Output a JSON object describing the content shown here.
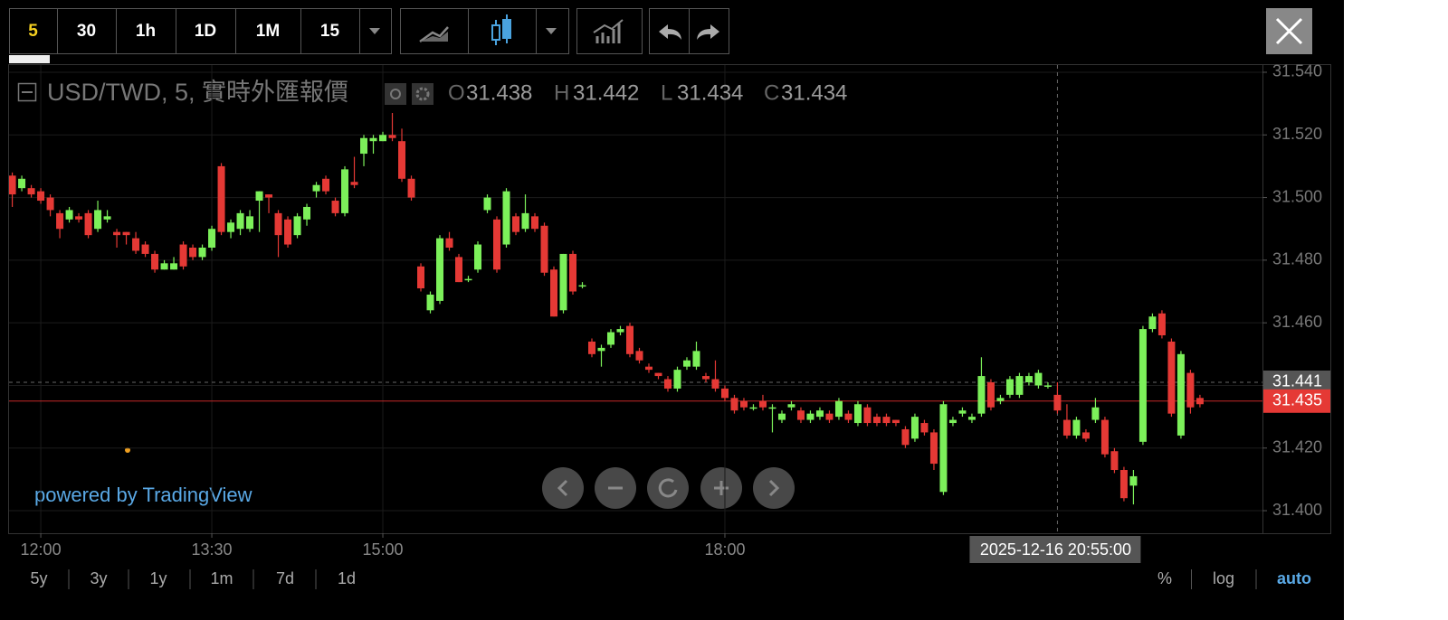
{
  "toolbar": {
    "intervals": [
      "5",
      "30",
      "1h",
      "1D",
      "1M",
      "15"
    ]
  },
  "chart_data": {
    "type": "candlestick",
    "title": "USD/TWD, 5, 實時外匯報價",
    "ohlc": [
      {
        "key": "O",
        "value": "31.438"
      },
      {
        "key": "H",
        "value": "31.442"
      },
      {
        "key": "L",
        "value": "31.434"
      },
      {
        "key": "C",
        "value": "31.434"
      }
    ],
    "up_color": "#7cf05a",
    "down_color": "#e53935",
    "x": [
      705,
      710,
      715,
      720,
      725,
      730,
      735,
      740,
      745,
      750,
      755,
      760,
      765,
      770,
      775,
      780,
      785,
      790,
      795,
      800,
      805,
      810,
      815,
      820,
      825,
      830,
      835,
      840,
      845,
      850,
      855,
      860,
      865,
      870,
      875,
      880,
      885,
      890,
      895,
      900,
      905,
      910,
      915,
      920,
      925,
      930,
      935,
      940,
      945,
      950,
      955,
      960,
      965,
      970,
      975,
      980,
      985,
      990,
      995,
      1000,
      1005,
      1010,
      1015,
      1020,
      1025,
      1030,
      1035,
      1040,
      1045,
      1050,
      1055,
      1060,
      1065,
      1070,
      1075,
      1080,
      1085,
      1090,
      1095,
      1100,
      1105,
      1110,
      1115,
      1120,
      1125,
      1130,
      1135,
      1140,
      1145,
      1150,
      1155,
      1160,
      1165,
      1170,
      1175,
      1180,
      1185,
      1190,
      1195,
      1200,
      1205,
      1210,
      1215,
      1220,
      1225,
      1230,
      1235,
      1240,
      1245,
      1250,
      1255,
      1260,
      1265,
      1270,
      1275,
      1280,
      1285,
      1290,
      1295,
      1300,
      1305,
      1310,
      1315,
      1320,
      1325,
      1330
    ],
    "open": [
      31.507,
      31.503,
      31.503,
      31.502,
      31.5,
      31.495,
      31.493,
      31.494,
      31.495,
      31.49,
      31.493,
      31.489,
      31.489,
      31.487,
      31.485,
      31.482,
      31.477,
      31.477,
      31.485,
      31.484,
      31.481,
      31.484,
      31.51,
      31.489,
      31.49,
      31.49,
      31.499,
      31.501,
      31.495,
      31.493,
      31.488,
      31.493,
      31.502,
      31.506,
      31.499,
      31.495,
      31.505,
      31.514,
      31.518,
      31.518,
      31.52,
      31.518,
      31.506,
      31.478,
      31.464,
      31.467,
      31.487,
      31.481,
      31.474,
      31.477,
      31.496,
      31.493,
      31.485,
      31.494,
      31.49,
      31.494,
      31.491,
      31.477,
      31.464,
      31.482,
      31.472,
      31.454,
      31.451,
      31.453,
      31.457,
      31.459,
      31.451,
      31.446,
      31.444,
      31.442,
      31.439,
      31.446,
      31.446,
      31.443,
      31.442,
      31.439,
      31.436,
      31.435,
      31.433,
      31.435,
      31.433,
      31.429,
      31.433,
      31.432,
      31.429,
      31.43,
      31.431,
      31.43,
      31.431,
      31.428,
      31.433,
      31.43,
      31.43,
      31.429,
      31.426,
      31.423,
      31.428,
      31.425,
      31.406,
      31.428,
      31.431,
      31.429,
      31.431,
      31.441,
      31.435,
      31.437,
      31.437,
      31.441,
      31.44,
      31.44,
      31.437,
      31.429,
      31.424,
      31.425,
      31.429,
      31.429,
      31.419,
      31.413,
      31.408,
      31.422,
      31.458,
      31.463,
      31.454,
      31.424,
      31.444,
      31.436
    ],
    "high": [
      31.508,
      31.507,
      31.504,
      31.503,
      31.501,
      31.496,
      31.497,
      31.495,
      31.496,
      31.499,
      31.496,
      31.49,
      31.489,
      31.489,
      31.486,
      31.483,
      31.48,
      31.481,
      31.486,
      31.485,
      31.485,
      31.491,
      31.511,
      31.493,
      31.496,
      31.496,
      31.502,
      31.501,
      31.496,
      31.494,
      31.495,
      31.498,
      31.505,
      31.507,
      31.5,
      31.51,
      31.513,
      31.52,
      31.52,
      31.521,
      31.527,
      31.522,
      31.507,
      31.479,
      31.47,
      31.488,
      31.489,
      31.482,
      31.475,
      31.486,
      31.501,
      31.494,
      31.503,
      31.495,
      31.501,
      31.495,
      31.492,
      31.478,
      31.482,
      31.483,
      31.473,
      31.455,
      31.453,
      31.458,
      31.459,
      31.46,
      31.452,
      31.447,
      31.444,
      31.443,
      31.446,
      31.449,
      31.454,
      31.444,
      31.448,
      31.44,
      31.437,
      31.436,
      31.434,
      31.437,
      31.434,
      31.432,
      31.435,
      31.433,
      31.432,
      31.433,
      31.432,
      31.436,
      31.432,
      31.435,
      31.434,
      31.431,
      31.431,
      31.429,
      31.427,
      31.431,
      31.429,
      31.426,
      31.435,
      31.43,
      31.433,
      31.431,
      31.449,
      31.442,
      31.437,
      31.443,
      31.444,
      31.444,
      31.445,
      31.441,
      31.441,
      31.434,
      31.43,
      31.426,
      31.436,
      31.43,
      31.42,
      31.414,
      31.413,
      31.459,
      31.463,
      31.464,
      31.455,
      31.451,
      31.445,
      31.437
    ],
    "low": [
      31.497,
      31.502,
      31.5,
      31.498,
      31.494,
      31.487,
      31.492,
      31.492,
      31.487,
      31.489,
      31.492,
      31.484,
      31.485,
      31.482,
      31.481,
      31.476,
      31.477,
      31.477,
      31.477,
      31.48,
      31.48,
      31.483,
      31.488,
      31.487,
      31.488,
      31.489,
      31.489,
      31.495,
      31.481,
      31.484,
      31.487,
      31.491,
      31.5,
      31.501,
      31.494,
      31.494,
      31.503,
      31.51,
      31.514,
      31.518,
      31.518,
      31.505,
      31.499,
      31.47,
      31.463,
      31.466,
      31.483,
      31.473,
      31.473,
      31.476,
      31.495,
      31.476,
      31.484,
      31.488,
      31.489,
      31.489,
      31.475,
      31.462,
      31.463,
      31.469,
      31.471,
      31.449,
      31.446,
      31.452,
      31.456,
      31.449,
      31.447,
      31.444,
      31.442,
      31.438,
      31.438,
      31.445,
      31.445,
      31.441,
      31.438,
      31.435,
      31.431,
      31.432,
      31.432,
      31.432,
      31.425,
      31.428,
      31.432,
      31.428,
      31.428,
      31.429,
      31.428,
      31.429,
      31.428,
      31.427,
      31.427,
      31.427,
      31.427,
      31.427,
      31.42,
      31.422,
      31.424,
      31.413,
      31.405,
      31.427,
      31.43,
      31.428,
      31.43,
      31.432,
      31.434,
      31.436,
      31.436,
      31.44,
      31.439,
      31.439,
      31.431,
      31.423,
      31.423,
      31.422,
      31.428,
      31.417,
      31.412,
      31.403,
      31.402,
      31.421,
      31.457,
      31.455,
      31.43,
      31.423,
      31.431,
      31.433
    ],
    "close": [
      31.501,
      31.506,
      31.501,
      31.499,
      31.496,
      31.49,
      31.496,
      31.493,
      31.488,
      31.496,
      31.494,
      31.488,
      31.488,
      31.483,
      31.482,
      31.477,
      31.479,
      31.479,
      31.478,
      31.481,
      31.484,
      31.49,
      31.489,
      31.492,
      31.495,
      31.494,
      31.502,
      31.5,
      31.488,
      31.485,
      31.494,
      31.497,
      31.504,
      31.502,
      31.495,
      31.509,
      31.504,
      31.519,
      31.519,
      31.52,
      31.519,
      31.506,
      31.5,
      31.471,
      31.469,
      31.487,
      31.484,
      31.473,
      31.474,
      31.485,
      31.5,
      31.477,
      31.502,
      31.489,
      31.495,
      31.49,
      31.476,
      31.462,
      31.482,
      31.47,
      31.472,
      31.45,
      31.452,
      31.457,
      31.458,
      31.45,
      31.448,
      31.445,
      31.443,
      31.439,
      31.445,
      31.448,
      31.451,
      31.442,
      31.439,
      31.436,
      31.432,
      31.433,
      31.433,
      31.433,
      31.433,
      31.431,
      31.434,
      31.429,
      31.431,
      31.432,
      31.429,
      31.435,
      31.429,
      31.434,
      31.428,
      31.428,
      31.428,
      31.428,
      31.421,
      31.43,
      31.425,
      31.415,
      31.434,
      31.429,
      31.432,
      31.43,
      31.443,
      31.433,
      31.436,
      31.442,
      31.443,
      31.443,
      31.444,
      31.44,
      31.432,
      31.424,
      31.429,
      31.423,
      31.433,
      31.418,
      31.413,
      31.404,
      31.411,
      31.458,
      31.462,
      31.456,
      31.431,
      31.45,
      31.433,
      31.434
    ],
    "xlim": [
      703.3,
      1362.9
    ],
    "ylim": [
      31.3928,
      31.5423
    ],
    "xticks": [
      {
        "value": 720,
        "label": "12:00"
      },
      {
        "value": 810,
        "label": "13:30"
      },
      {
        "value": 900,
        "label": "15:00"
      },
      {
        "value": 1080,
        "label": "18:00"
      }
    ],
    "yticks": [
      {
        "value": 31.4,
        "label": "31.400"
      },
      {
        "value": 31.42,
        "label": "31.420"
      },
      {
        "value": 31.44,
        "label": "31.440"
      },
      {
        "value": 31.46,
        "label": "31.460"
      },
      {
        "value": 31.48,
        "label": "31.480"
      },
      {
        "value": 31.5,
        "label": "31.500"
      },
      {
        "value": 31.52,
        "label": "31.520"
      },
      {
        "value": 31.54,
        "label": "31.540"
      }
    ],
    "grid": true,
    "last_price": {
      "value": 31.435,
      "label": "31.435"
    },
    "crosshair": {
      "x": 1255,
      "label": "2025-12-16 20:55:00",
      "price": {
        "value": 31.441,
        "label": "31.441"
      }
    },
    "watermark": "powered by TradingView"
  },
  "footer": {
    "ranges": [
      "5y",
      "3y",
      "1y",
      "1m",
      "7d",
      "1d"
    ],
    "scale_options": [
      "%",
      "log",
      "auto"
    ]
  }
}
